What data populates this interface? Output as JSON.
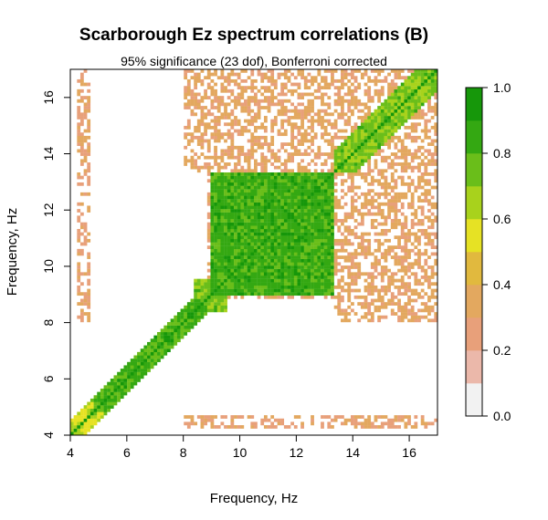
{
  "chart_data": {
    "type": "heatmap",
    "title": "Scarborough Ez spectrum correlations (B)",
    "subtitle": "95% significance (23 dof), Bonferroni corrected",
    "xlabel": "Frequency, Hz",
    "ylabel": "Frequency, Hz",
    "xlim": [
      4,
      17
    ],
    "ylim": [
      4,
      17
    ],
    "xticks": [
      "4",
      "6",
      "8",
      "10",
      "12",
      "14",
      "16"
    ],
    "yticks": [
      "4",
      "6",
      "8",
      "10",
      "12",
      "14",
      "16"
    ],
    "colorbar": {
      "range": [
        0,
        1
      ],
      "ticks": [
        "0.0",
        "0.2",
        "0.4",
        "0.6",
        "0.8",
        "1.0"
      ],
      "levels": [
        {
          "from": 0.0,
          "to": 0.1,
          "color": "#f2f2f2"
        },
        {
          "from": 0.1,
          "to": 0.2,
          "color": "#ebb8aa"
        },
        {
          "from": 0.2,
          "to": 0.3,
          "color": "#e8a07a"
        },
        {
          "from": 0.3,
          "to": 0.4,
          "color": "#e3a85f"
        },
        {
          "from": 0.4,
          "to": 0.5,
          "color": "#e1b93e"
        },
        {
          "from": 0.5,
          "to": 0.6,
          "color": "#e6e224"
        },
        {
          "from": 0.6,
          "to": 0.7,
          "color": "#a8d21c"
        },
        {
          "from": 0.7,
          "to": 0.8,
          "color": "#6abe1a"
        },
        {
          "from": 0.8,
          "to": 0.9,
          "color": "#34a812"
        },
        {
          "from": 0.9,
          "to": 1.0,
          "color": "#16970a"
        }
      ]
    },
    "regions": [
      {
        "description": "diagonal",
        "correlation": 1.0
      },
      {
        "x": [
          9.0,
          13.3
        ],
        "y": [
          9.0,
          13.3
        ],
        "correlation": 0.85
      },
      {
        "x": [
          4.0,
          8.8
        ],
        "y": [
          4.0,
          8.8
        ],
        "correlation": 0.8,
        "along": "diagonal"
      },
      {
        "x": [
          8.0,
          17.0
        ],
        "y": [
          13.3,
          17.0
        ],
        "correlation": 0.35
      },
      {
        "x": [
          13.3,
          17.0
        ],
        "y": [
          8.0,
          13.3
        ],
        "correlation": 0.35
      },
      {
        "x": [
          8.0,
          17.0
        ],
        "y": [
          4.2,
          4.7
        ],
        "correlation": 0.35
      },
      {
        "x": [
          4.4,
          4.8
        ],
        "y": [
          8.0,
          17.0
        ],
        "correlation": 0.35
      }
    ]
  }
}
